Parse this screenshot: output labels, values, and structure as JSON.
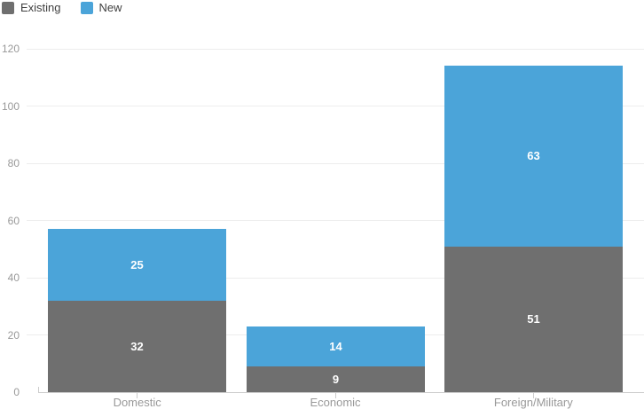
{
  "legend": {
    "items": [
      {
        "label": "Existing",
        "color": "#6f6f6f"
      },
      {
        "label": "New",
        "color": "#4ba4d9"
      }
    ]
  },
  "chart_data": {
    "type": "bar",
    "stacked": true,
    "title": "",
    "xlabel": "",
    "ylabel": "",
    "categories": [
      "Domestic",
      "Economic",
      "Foreign/Military"
    ],
    "series": [
      {
        "name": "Existing",
        "color": "#6f6f6f",
        "values": [
          32,
          9,
          51
        ]
      },
      {
        "name": "New",
        "color": "#4ba4d9",
        "values": [
          25,
          14,
          63
        ]
      }
    ],
    "totals": [
      57,
      23,
      114
    ],
    "ylim": [
      0,
      120
    ],
    "ytick_step": 20,
    "ytick_labels": [
      "0",
      "20",
      "40",
      "60",
      "80",
      "100",
      "120"
    ],
    "grid": true,
    "legend_position": "top-left",
    "value_label_color": "#ffffff"
  },
  "colors": {
    "background": "#ffffff",
    "gridline": "#ededed",
    "axis": "#cccccc",
    "axis_text": "#999999",
    "legend_text": "#404040"
  }
}
